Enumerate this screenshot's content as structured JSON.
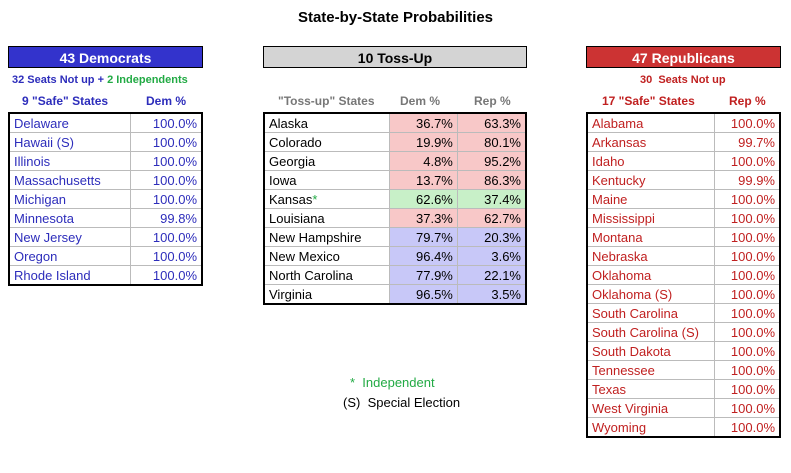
{
  "title": "State-by-State Probabilities",
  "colors": {
    "dem": "#3333cc",
    "rep": "#cc3333",
    "toss": "#d4d4d4",
    "ind": "#22aa44",
    "pink": "#f8c8c8",
    "green": "#c8f0c8",
    "blue": "#c8c8f8"
  },
  "dem": {
    "header": "43 Democrats",
    "sub_part1": "32 Seats Not up",
    "sub_plus": " + ",
    "sub_part2": "2 Independents",
    "col_state": "9 \"Safe\" States",
    "col_pct": "Dem %",
    "rows": [
      {
        "state": "Delaware",
        "pct": "100.0%"
      },
      {
        "state": "Hawaii (S)",
        "pct": "100.0%"
      },
      {
        "state": "Illinois",
        "pct": "100.0%"
      },
      {
        "state": "Massachusetts",
        "pct": "100.0%"
      },
      {
        "state": "Michigan",
        "pct": "100.0%"
      },
      {
        "state": "Minnesota",
        "pct": "99.8%"
      },
      {
        "state": "New Jersey",
        "pct": "100.0%"
      },
      {
        "state": "Oregon",
        "pct": "100.0%"
      },
      {
        "state": "Rhode Island",
        "pct": "100.0%"
      }
    ]
  },
  "toss": {
    "header": "10 Toss-Up",
    "col_state": "\"Toss-up\" States",
    "col_dem": "Dem %",
    "col_rep": "Rep %",
    "rows": [
      {
        "state": "Alaska",
        "mark": "",
        "dem": "36.7%",
        "rep": "63.3%",
        "shade": "pink"
      },
      {
        "state": "Colorado",
        "mark": "",
        "dem": "19.9%",
        "rep": "80.1%",
        "shade": "pink"
      },
      {
        "state": "Georgia",
        "mark": "",
        "dem": "4.8%",
        "rep": "95.2%",
        "shade": "pink"
      },
      {
        "state": "Iowa",
        "mark": "",
        "dem": "13.7%",
        "rep": "86.3%",
        "shade": "pink"
      },
      {
        "state": "Kansas",
        "mark": "*",
        "dem": "62.6%",
        "rep": "37.4%",
        "shade": "green"
      },
      {
        "state": "Louisiana",
        "mark": "",
        "dem": "37.3%",
        "rep": "62.7%",
        "shade": "pink"
      },
      {
        "state": "New Hampshire",
        "mark": "",
        "dem": "79.7%",
        "rep": "20.3%",
        "shade": "blue"
      },
      {
        "state": "New Mexico",
        "mark": "",
        "dem": "96.4%",
        "rep": "3.6%",
        "shade": "blue"
      },
      {
        "state": "North Carolina",
        "mark": "",
        "dem": "77.9%",
        "rep": "22.1%",
        "shade": "blue"
      },
      {
        "state": "Virginia",
        "mark": "",
        "dem": "96.5%",
        "rep": "3.5%",
        "shade": "blue"
      }
    ]
  },
  "rep": {
    "header": "47 Republicans",
    "sub": "30  Seats Not up",
    "col_state": "17 \"Safe\" States",
    "col_pct": "Rep %",
    "rows": [
      {
        "state": "Alabama",
        "pct": "100.0%"
      },
      {
        "state": "Arkansas",
        "pct": "99.7%"
      },
      {
        "state": "Idaho",
        "pct": "100.0%"
      },
      {
        "state": "Kentucky",
        "pct": "99.9%"
      },
      {
        "state": "Maine",
        "pct": "100.0%"
      },
      {
        "state": "Mississippi",
        "pct": "100.0%"
      },
      {
        "state": "Montana",
        "pct": "100.0%"
      },
      {
        "state": "Nebraska",
        "pct": "100.0%"
      },
      {
        "state": "Oklahoma",
        "pct": "100.0%"
      },
      {
        "state": "Oklahoma (S)",
        "pct": "100.0%"
      },
      {
        "state": "South Carolina",
        "pct": "100.0%"
      },
      {
        "state": "South Carolina (S)",
        "pct": "100.0%"
      },
      {
        "state": "South Dakota",
        "pct": "100.0%"
      },
      {
        "state": "Tennessee",
        "pct": "100.0%"
      },
      {
        "state": "Texas",
        "pct": "100.0%"
      },
      {
        "state": "West Virginia",
        "pct": "100.0%"
      },
      {
        "state": "Wyoming",
        "pct": "100.0%"
      }
    ]
  },
  "legend": {
    "ind_star": "*",
    "ind_label": "Independent",
    "special_mark": "(S)",
    "special_label": "Special Election"
  }
}
